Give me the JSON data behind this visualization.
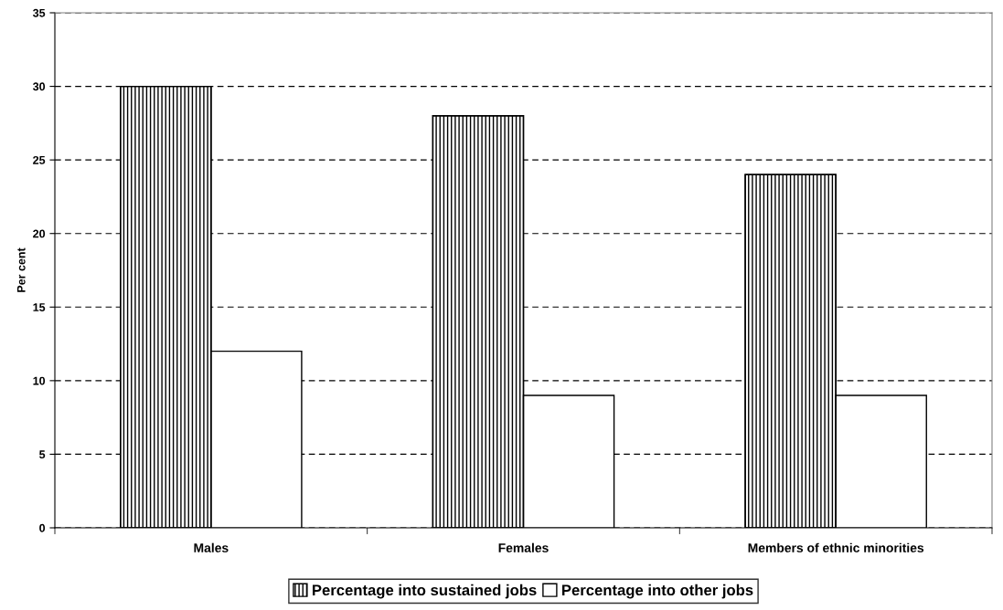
{
  "chart_data": {
    "type": "bar",
    "ylabel": "Per cent",
    "categories": [
      "Males",
      "Females",
      "Members of ethnic minorities"
    ],
    "series": [
      {
        "name": "Percentage into sustained jobs",
        "color": "#000000",
        "values": [
          30,
          28,
          24
        ]
      },
      {
        "name": "Percentage into other jobs",
        "color": "#ffffff",
        "values": [
          12,
          9,
          9
        ]
      }
    ],
    "ylim": [
      0,
      35
    ],
    "yticks": [
      0,
      5,
      10,
      15,
      20,
      25,
      30,
      35
    ],
    "grid": "y",
    "legend": "bottom"
  }
}
